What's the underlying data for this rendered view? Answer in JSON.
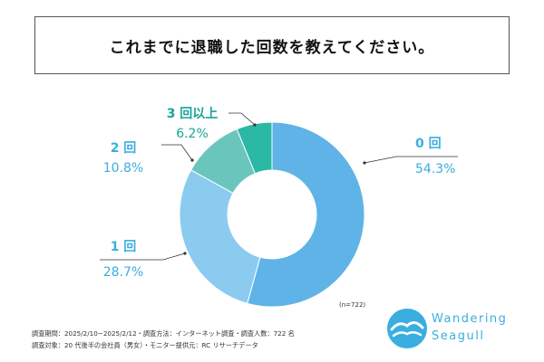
{
  "title": "これまでに退職した回数を教えてください。",
  "sample_note": "(n=722)",
  "footer": {
    "line1": "調査期間：2025/2/10~2025/2/12・調査方法：インターネット調査・調査人数：722 名",
    "line2": "調査対象：20 代後半の会社員（男女）・モニター提供元：RC リサーチデータ"
  },
  "logo": {
    "line1": "Wandering",
    "line2": "Seagull"
  },
  "colors": {
    "accent": "#3aaee0",
    "slice0": "#5fb3e6",
    "slice1": "#8ccbf0",
    "slice2": "#6ac6bd",
    "slice3": "#2bb8a5"
  },
  "chart_data": {
    "type": "pie",
    "donut": true,
    "categories": [
      "0 回",
      "1 回",
      "2 回",
      "3 回以上"
    ],
    "values": [
      54.3,
      28.7,
      10.8,
      6.2
    ],
    "value_labels": [
      "54.3%",
      "28.7%",
      "10.8%",
      "6.2%"
    ],
    "label_colors": [
      "#3aaee0",
      "#3aaee0",
      "#3aaee0",
      "#1aa596"
    ],
    "n": 722
  }
}
